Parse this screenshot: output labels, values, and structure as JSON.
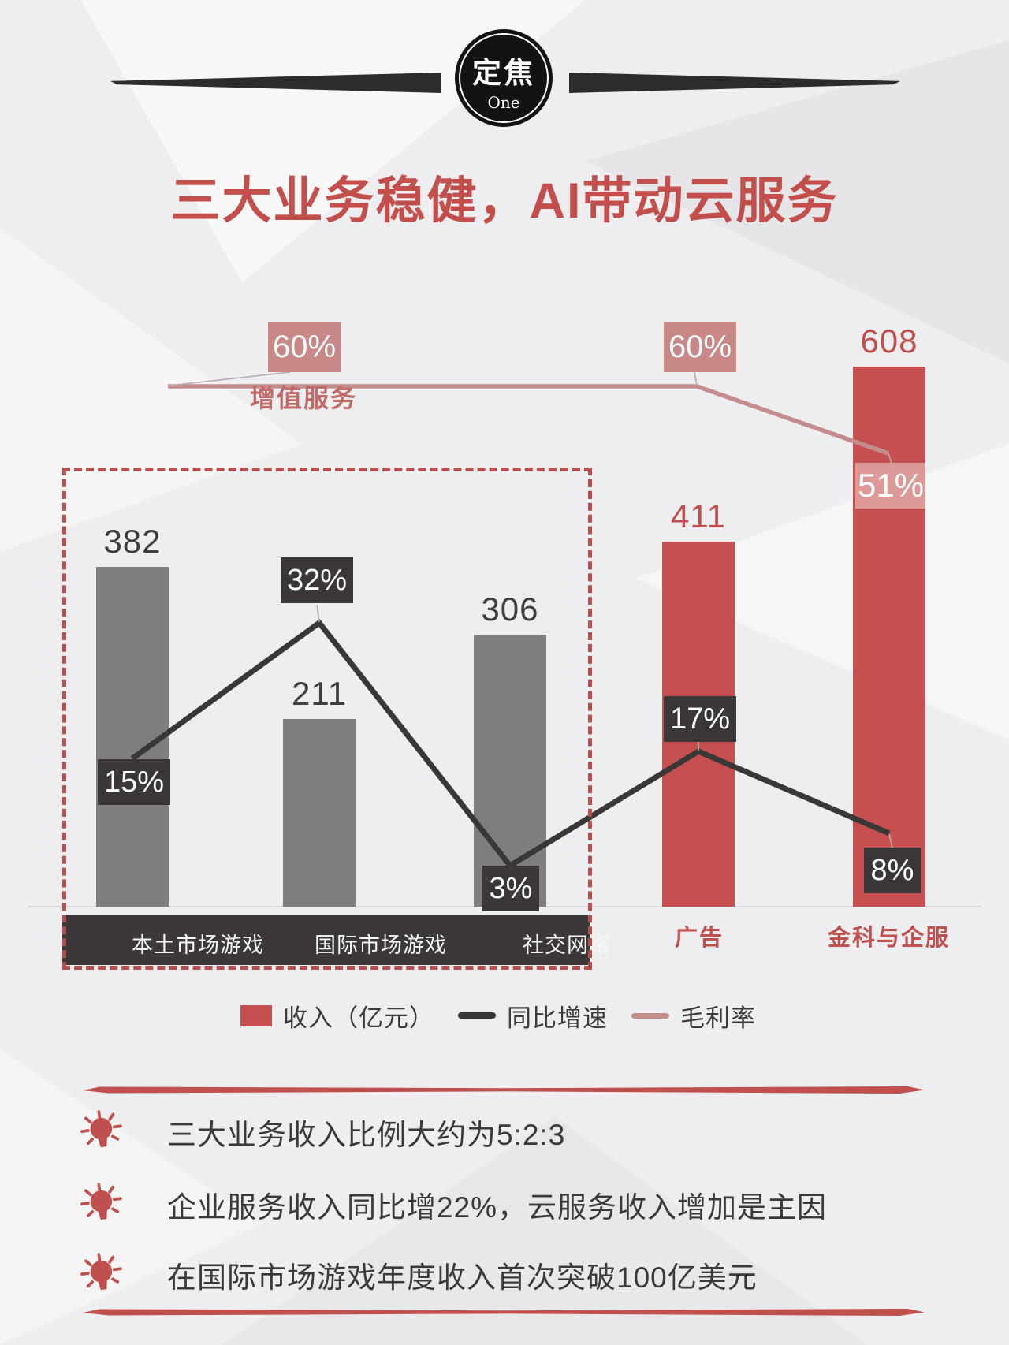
{
  "badge": {
    "label": "定焦",
    "sublabel": "One"
  },
  "page_title": "三大业务稳健，AI带动云服务",
  "colors": {
    "accent_red": "#c0504d",
    "bar_red": "#c5504f",
    "bar_gray": "#7f7d7e",
    "dark_charcoal": "#3b3738",
    "pink_line": "#c48d8c",
    "pink_label_bg": "#c98888",
    "dashed_border": "#b15150"
  },
  "chart_data": {
    "type": "bar",
    "title": "",
    "categories": [
      "本土市场游戏",
      "国际市场游戏",
      "社交网络",
      "广告",
      "金科与企服"
    ],
    "group_box_label": "增值服务",
    "group_box_members": [
      "本土市场游戏",
      "国际市场游戏",
      "社交网络"
    ],
    "bar_colors": [
      "#7f7d7e",
      "#7f7d7e",
      "#7f7d7e",
      "#c5504f",
      "#c5504f"
    ],
    "value_label_colors": [
      "#3f3f3f",
      "#3f3f3f",
      "#3f3f3f",
      "#c0504d",
      "#c0504d"
    ],
    "series": [
      {
        "name": "收入（亿元）",
        "type": "bar",
        "values": [
          382,
          211,
          306,
          411,
          608
        ]
      },
      {
        "name": "同比增速",
        "type": "line",
        "unit": "%",
        "values": [
          15,
          32,
          3,
          17,
          8
        ],
        "labels": [
          "15%",
          "32%",
          "3%",
          "17%",
          "8%"
        ]
      },
      {
        "name": "毛利率",
        "type": "line",
        "unit": "%",
        "values": [
          60,
          60,
          51
        ],
        "labels": [
          "60%",
          "60%",
          "51%"
        ],
        "applies_to": [
          "增值服务",
          "广告",
          "金科与企服"
        ]
      }
    ],
    "ylim": [
      0,
      650
    ],
    "grid": false,
    "legend_position": "bottom"
  },
  "legend": [
    {
      "label": "收入（亿元）",
      "swatch": "bar",
      "color": "#c5504f"
    },
    {
      "label": "同比增速",
      "swatch": "line",
      "color": "#3a3737"
    },
    {
      "label": "毛利率",
      "swatch": "line",
      "color": "#c48d8c"
    }
  ],
  "insights": [
    "三大业务收入比例大约为5:2:3",
    "企业服务收入同比增22%，云服务收入增加是主因",
    "在国际市场游戏年度收入首次突破100亿美元"
  ]
}
